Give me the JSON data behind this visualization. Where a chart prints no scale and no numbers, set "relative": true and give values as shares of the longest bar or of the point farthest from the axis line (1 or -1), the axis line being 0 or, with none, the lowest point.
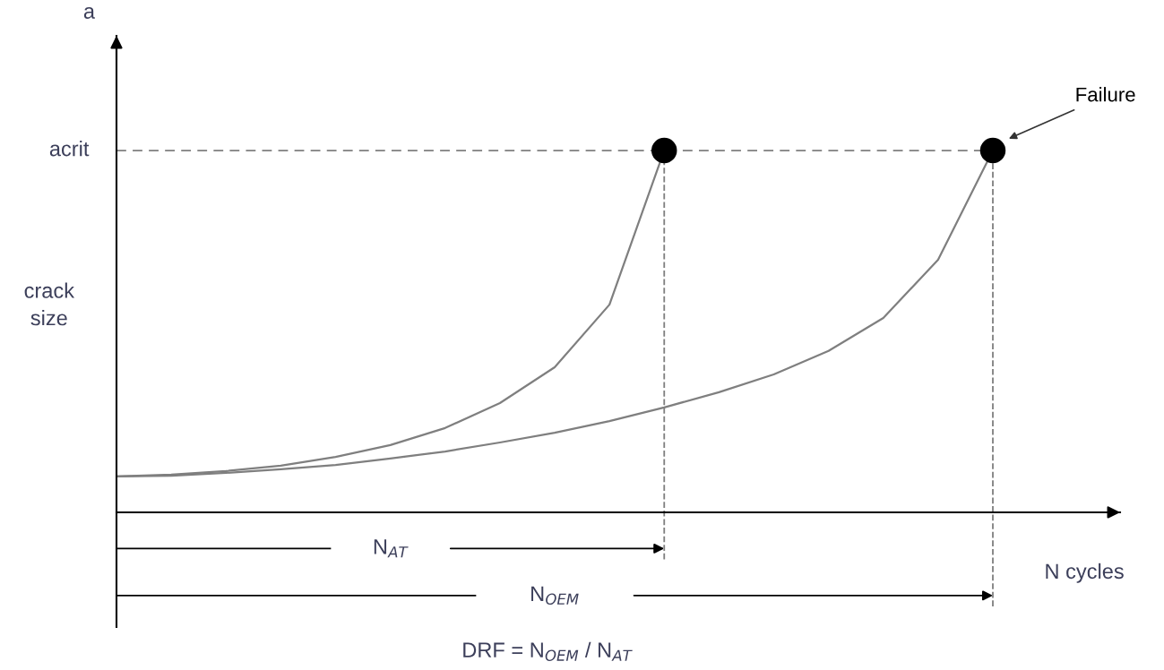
{
  "chart_data": {
    "type": "line",
    "relative": true,
    "xlabel": "N cycles",
    "legend": false,
    "grid": false,
    "categories": [
      null,
      null,
      null,
      null,
      null,
      null,
      null,
      null,
      null,
      null,
      null,
      null,
      null,
      null,
      null,
      null,
      null
    ],
    "series": [
      {
        "color": "#7f7f7f",
        "line_style": "solid",
        "values": [
          0.099,
          0.104,
          0.114,
          0.129,
          0.153,
          0.186,
          0.233,
          0.302,
          0.401,
          0.574,
          1.0,
          null,
          null,
          null,
          null,
          null,
          null
        ]
      },
      {
        "color": "#7f7f7f",
        "line_style": "solid",
        "values": [
          0.099,
          0.101,
          0.109,
          0.119,
          0.131,
          0.149,
          0.168,
          0.193,
          0.22,
          0.252,
          0.29,
          0.332,
          0.381,
          0.446,
          0.537,
          0.698,
          1.0
        ]
      }
    ],
    "annotations": [
      "acrit",
      "a",
      "Failure",
      "crack size",
      "N$_{AT}$",
      "N$_{OEM}$",
      "DRF = N$_{OEM}$ / N$_{AT}$"
    ]
  }
}
